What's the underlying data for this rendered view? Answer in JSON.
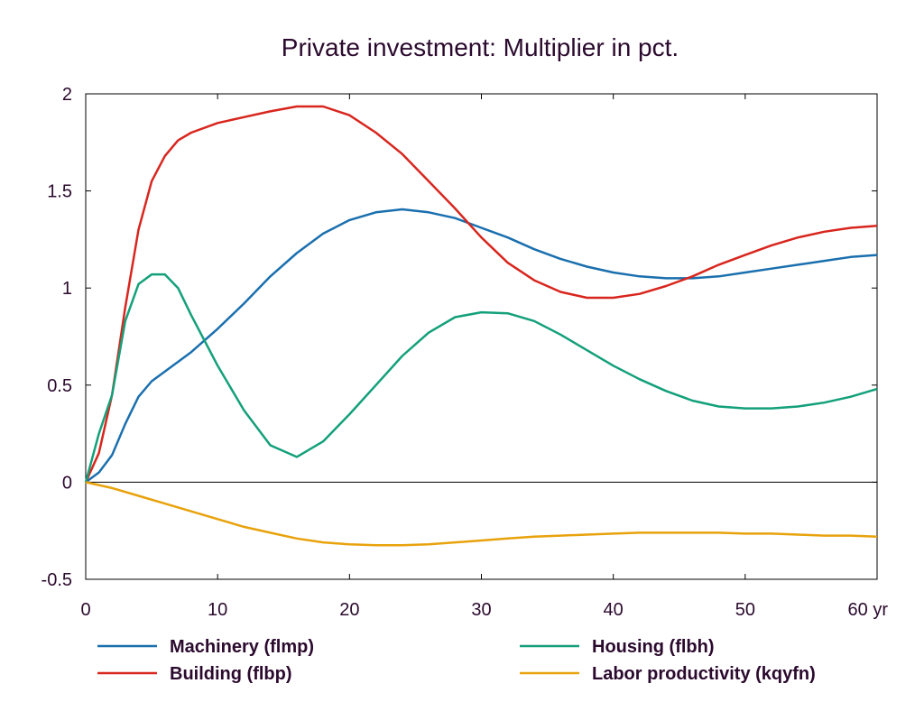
{
  "chart_data": {
    "type": "line",
    "title": "Private investment: Multiplier in pct.",
    "xlabel": "",
    "ylabel": "",
    "x_unit_label": "yr",
    "xlim": [
      0,
      60
    ],
    "ylim": [
      -0.5,
      2
    ],
    "x_ticks": [
      "0",
      "10",
      "20",
      "30",
      "40",
      "50",
      "60 yr"
    ],
    "x_tick_values": [
      0,
      10,
      20,
      30,
      40,
      50,
      60
    ],
    "y_ticks": [
      "2",
      "1.5",
      "1",
      "0.5",
      "0",
      "-0.5"
    ],
    "y_tick_values": [
      2,
      1.5,
      1,
      0.5,
      0,
      -0.5
    ],
    "grid": false,
    "legend_position": "bottom",
    "series": [
      {
        "name": "Machinery (flmp)",
        "color": "#1a6fae",
        "points": [
          [
            0,
            0
          ],
          [
            1,
            0.05
          ],
          [
            2,
            0.14
          ],
          [
            3,
            0.3
          ],
          [
            4,
            0.44
          ],
          [
            5,
            0.52
          ],
          [
            6,
            0.57
          ],
          [
            7,
            0.62
          ],
          [
            8,
            0.67
          ],
          [
            10,
            0.79
          ],
          [
            12,
            0.92
          ],
          [
            14,
            1.06
          ],
          [
            16,
            1.18
          ],
          [
            18,
            1.28
          ],
          [
            20,
            1.35
          ],
          [
            22,
            1.39
          ],
          [
            24,
            1.405
          ],
          [
            26,
            1.39
          ],
          [
            28,
            1.36
          ],
          [
            30,
            1.31
          ],
          [
            32,
            1.26
          ],
          [
            34,
            1.2
          ],
          [
            36,
            1.15
          ],
          [
            38,
            1.11
          ],
          [
            40,
            1.08
          ],
          [
            42,
            1.06
          ],
          [
            44,
            1.05
          ],
          [
            46,
            1.05
          ],
          [
            48,
            1.06
          ],
          [
            50,
            1.08
          ],
          [
            52,
            1.1
          ],
          [
            54,
            1.12
          ],
          [
            56,
            1.14
          ],
          [
            58,
            1.16
          ],
          [
            60,
            1.17
          ]
        ]
      },
      {
        "name": "Building (flbp)",
        "color": "#d8261e",
        "points": [
          [
            0,
            0
          ],
          [
            1,
            0.15
          ],
          [
            2,
            0.45
          ],
          [
            3,
            0.9
          ],
          [
            4,
            1.3
          ],
          [
            5,
            1.55
          ],
          [
            6,
            1.68
          ],
          [
            7,
            1.76
          ],
          [
            8,
            1.8
          ],
          [
            10,
            1.85
          ],
          [
            12,
            1.88
          ],
          [
            14,
            1.91
          ],
          [
            16,
            1.935
          ],
          [
            18,
            1.935
          ],
          [
            20,
            1.89
          ],
          [
            22,
            1.8
          ],
          [
            24,
            1.69
          ],
          [
            26,
            1.55
          ],
          [
            28,
            1.41
          ],
          [
            30,
            1.26
          ],
          [
            32,
            1.13
          ],
          [
            34,
            1.04
          ],
          [
            36,
            0.98
          ],
          [
            38,
            0.95
          ],
          [
            40,
            0.95
          ],
          [
            42,
            0.97
          ],
          [
            44,
            1.01
          ],
          [
            46,
            1.06
          ],
          [
            48,
            1.12
          ],
          [
            50,
            1.17
          ],
          [
            52,
            1.22
          ],
          [
            54,
            1.26
          ],
          [
            56,
            1.29
          ],
          [
            58,
            1.31
          ],
          [
            60,
            1.32
          ]
        ]
      },
      {
        "name": "Housing (flbh)",
        "color": "#13a07a",
        "points": [
          [
            0,
            0
          ],
          [
            1,
            0.25
          ],
          [
            2,
            0.45
          ],
          [
            3,
            0.83
          ],
          [
            4,
            1.02
          ],
          [
            5,
            1.07
          ],
          [
            6,
            1.07
          ],
          [
            7,
            1.0
          ],
          [
            8,
            0.86
          ],
          [
            10,
            0.6
          ],
          [
            12,
            0.37
          ],
          [
            14,
            0.19
          ],
          [
            16,
            0.13
          ],
          [
            18,
            0.21
          ],
          [
            20,
            0.35
          ],
          [
            22,
            0.5
          ],
          [
            24,
            0.65
          ],
          [
            26,
            0.77
          ],
          [
            28,
            0.85
          ],
          [
            30,
            0.875
          ],
          [
            32,
            0.87
          ],
          [
            34,
            0.83
          ],
          [
            36,
            0.76
          ],
          [
            38,
            0.68
          ],
          [
            40,
            0.6
          ],
          [
            42,
            0.53
          ],
          [
            44,
            0.47
          ],
          [
            46,
            0.42
          ],
          [
            48,
            0.39
          ],
          [
            50,
            0.38
          ],
          [
            52,
            0.38
          ],
          [
            54,
            0.39
          ],
          [
            56,
            0.41
          ],
          [
            58,
            0.44
          ],
          [
            60,
            0.48
          ]
        ]
      },
      {
        "name": "Labor productivity (kqyfn)",
        "color": "#e8a20c",
        "points": [
          [
            0,
            0
          ],
          [
            2,
            -0.03
          ],
          [
            4,
            -0.07
          ],
          [
            6,
            -0.11
          ],
          [
            8,
            -0.15
          ],
          [
            10,
            -0.19
          ],
          [
            12,
            -0.23
          ],
          [
            14,
            -0.26
          ],
          [
            16,
            -0.29
          ],
          [
            18,
            -0.31
          ],
          [
            20,
            -0.32
          ],
          [
            22,
            -0.325
          ],
          [
            24,
            -0.325
          ],
          [
            26,
            -0.32
          ],
          [
            28,
            -0.31
          ],
          [
            30,
            -0.3
          ],
          [
            32,
            -0.29
          ],
          [
            34,
            -0.28
          ],
          [
            36,
            -0.275
          ],
          [
            38,
            -0.27
          ],
          [
            40,
            -0.265
          ],
          [
            42,
            -0.26
          ],
          [
            44,
            -0.26
          ],
          [
            46,
            -0.26
          ],
          [
            48,
            -0.26
          ],
          [
            50,
            -0.265
          ],
          [
            52,
            -0.265
          ],
          [
            54,
            -0.27
          ],
          [
            56,
            -0.275
          ],
          [
            58,
            -0.275
          ],
          [
            60,
            -0.28
          ]
        ]
      }
    ]
  }
}
